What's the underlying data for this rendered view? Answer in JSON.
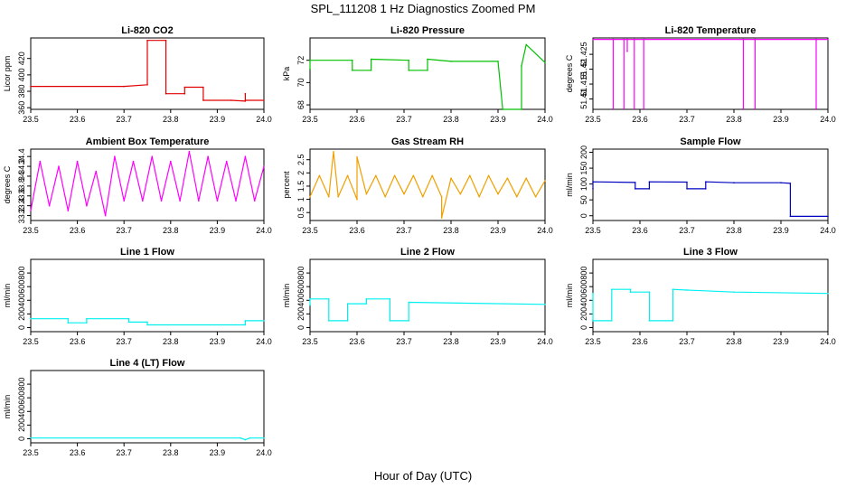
{
  "figure": {
    "title": "SPL_111208  1 Hz Diagnostics Zoomed PM",
    "xlabel": "Hour of Day (UTC)"
  },
  "chart_data": [
    {
      "type": "line",
      "title": "Li-820 CO2",
      "ylabel": "Licor ppm",
      "color": "#e00000",
      "xlim": [
        23.5,
        24.0
      ],
      "ylim": [
        358,
        445
      ],
      "xticks": [
        "23.5",
        "23.6",
        "23.7",
        "23.8",
        "23.9",
        "24.0"
      ],
      "yticks": [
        360,
        380,
        400,
        420
      ],
      "series": [
        {
          "x": [
            23.5,
            23.7,
            23.75,
            23.75,
            23.79,
            23.79,
            23.83,
            23.83,
            23.87,
            23.87,
            23.93,
            23.96,
            23.96,
            23.96,
            24.0
          ],
          "y": [
            386,
            386,
            388,
            442,
            442,
            377,
            377,
            385,
            385,
            369,
            369,
            368,
            377,
            369,
            369
          ]
        }
      ]
    },
    {
      "type": "line",
      "title": "Li-820 Pressure",
      "ylabel": "kPa",
      "color": "#00c000",
      "xlim": [
        23.5,
        24.0
      ],
      "ylim": [
        67.6,
        74.0
      ],
      "xticks": [
        "23.5",
        "23.6",
        "23.7",
        "23.8",
        "23.9",
        "24.0"
      ],
      "yticks": [
        68,
        70,
        72
      ],
      "series": [
        {
          "x": [
            23.5,
            23.5,
            23.59,
            23.59,
            23.63,
            23.63,
            23.71,
            23.71,
            23.75,
            23.75,
            23.8,
            23.9,
            23.91,
            23.91,
            23.95,
            23.95,
            23.96,
            24.0
          ],
          "y": [
            71.2,
            72.0,
            72.0,
            71.1,
            71.1,
            72.1,
            72.0,
            71.1,
            71.1,
            72.1,
            71.9,
            71.9,
            67.6,
            67.6,
            67.6,
            71.5,
            73.4,
            71.8
          ]
        }
      ]
    },
    {
      "type": "line",
      "title": "Li-820 Temperature",
      "ylabel": "degrees C",
      "color": "#ff00ff",
      "xlim": [
        23.5,
        24.0
      ],
      "ylim": [
        51.4065,
        51.4305
      ],
      "xticks": [
        "23.5",
        "23.6",
        "23.7",
        "23.8",
        "23.9",
        "24.0"
      ],
      "yticks": [
        51.41,
        51.415,
        51.42,
        51.425
      ],
      "series": [
        {
          "x": [
            23.5,
            23.543,
            23.543,
            23.543,
            23.566,
            23.566,
            23.566,
            23.573,
            23.573,
            23.573,
            23.588,
            23.588,
            23.588,
            23.608,
            23.608,
            23.608,
            23.82,
            23.82,
            23.82,
            23.845,
            23.845,
            23.845,
            23.975,
            23.975,
            23.975,
            24.0
          ],
          "y": [
            51.43,
            51.43,
            51.4067,
            51.43,
            51.43,
            51.4067,
            51.43,
            51.43,
            51.426,
            51.43,
            51.43,
            51.4067,
            51.43,
            51.43,
            51.4067,
            51.43,
            51.43,
            51.4067,
            51.43,
            51.43,
            51.4067,
            51.43,
            51.43,
            51.4067,
            51.43,
            51.43
          ]
        }
      ]
    },
    {
      "type": "line",
      "title": "Ambient Box Temperature",
      "ylabel": "degrees C",
      "color": "#ff00ff",
      "xlim": [
        23.5,
        24.0
      ],
      "ylim": [
        33.1,
        34.55
      ],
      "xticks": [
        "23.5",
        "23.6",
        "23.7",
        "23.8",
        "23.9",
        "24.0"
      ],
      "yticks": [
        33.2,
        33.4,
        33.6,
        33.8,
        34.0,
        34.2,
        34.4
      ],
      "series": [
        {
          "x": [
            23.5,
            23.52,
            23.54,
            23.56,
            23.58,
            23.6,
            23.62,
            23.64,
            23.66,
            23.68,
            23.7,
            23.72,
            23.74,
            23.76,
            23.78,
            23.8,
            23.82,
            23.84,
            23.86,
            23.88,
            23.9,
            23.92,
            23.94,
            23.96,
            23.98,
            24.0
          ],
          "y": [
            33.3,
            34.3,
            33.4,
            34.2,
            33.3,
            34.3,
            33.4,
            34.1,
            33.2,
            34.4,
            33.5,
            34.3,
            33.5,
            34.4,
            33.5,
            34.3,
            33.5,
            34.5,
            33.5,
            34.4,
            33.5,
            34.3,
            33.5,
            34.4,
            33.5,
            34.2
          ]
        }
      ]
    },
    {
      "type": "line",
      "title": "Gas Stream RH",
      "ylabel": "percent",
      "color": "#f0a000",
      "xlim": [
        23.5,
        24.0
      ],
      "ylim": [
        0.2,
        2.9
      ],
      "xticks": [
        "23.5",
        "23.6",
        "23.7",
        "23.8",
        "23.9",
        "24.0"
      ],
      "yticks": [
        0.5,
        1.0,
        1.5,
        2.0,
        2.5
      ],
      "series": [
        {
          "x": [
            23.5,
            23.52,
            23.54,
            23.55,
            23.56,
            23.58,
            23.6,
            23.6,
            23.62,
            23.64,
            23.66,
            23.68,
            23.7,
            23.72,
            23.74,
            23.76,
            23.78,
            23.78,
            23.8,
            23.82,
            23.84,
            23.86,
            23.88,
            23.9,
            23.92,
            23.94,
            23.96,
            23.98,
            24.0
          ],
          "y": [
            1.1,
            1.9,
            1.1,
            2.8,
            1.1,
            1.9,
            1.0,
            2.6,
            1.2,
            1.9,
            1.1,
            1.9,
            1.2,
            1.9,
            1.1,
            1.9,
            1.1,
            0.3,
            1.8,
            1.2,
            1.9,
            1.1,
            1.9,
            1.2,
            1.8,
            1.1,
            1.8,
            1.1,
            1.7
          ]
        }
      ]
    },
    {
      "type": "line",
      "title": "Sample Flow",
      "ylabel": "ml/min",
      "color": "#0000c0",
      "xlim": [
        23.5,
        24.0
      ],
      "ylim": [
        -15,
        210
      ],
      "xticks": [
        "23.5",
        "23.6",
        "23.7",
        "23.8",
        "23.9",
        "24.0"
      ],
      "yticks": [
        0,
        50,
        100,
        150,
        200
      ],
      "series": [
        {
          "x": [
            23.5,
            23.5,
            23.59,
            23.59,
            23.62,
            23.62,
            23.7,
            23.7,
            23.74,
            23.74,
            23.8,
            23.9,
            23.92,
            23.92,
            24.0
          ],
          "y": [
            85,
            107,
            105,
            85,
            85,
            107,
            106,
            85,
            85,
            107,
            104,
            104,
            102,
            -2,
            -2
          ]
        }
      ]
    },
    {
      "type": "line",
      "title": "Line 1 Flow",
      "ylabel": "ml/min",
      "color": "#00f0f0",
      "xlim": [
        23.5,
        24.0
      ],
      "ylim": [
        -60,
        1000
      ],
      "xticks": [
        "23.5",
        "23.6",
        "23.7",
        "23.8",
        "23.9",
        "24.0"
      ],
      "yticks": [
        0,
        200,
        400,
        600,
        800
      ],
      "series": [
        {
          "x": [
            23.5,
            23.58,
            23.58,
            23.62,
            23.62,
            23.71,
            23.71,
            23.75,
            23.75,
            23.96,
            23.96,
            24.0
          ],
          "y": [
            130,
            130,
            70,
            70,
            130,
            130,
            80,
            80,
            40,
            40,
            100,
            100
          ]
        }
      ]
    },
    {
      "type": "line",
      "title": "Line 2 Flow",
      "ylabel": "ml/min",
      "color": "#00f0f0",
      "xlim": [
        23.5,
        24.0
      ],
      "ylim": [
        -60,
        1000
      ],
      "xticks": [
        "23.5",
        "23.6",
        "23.7",
        "23.8",
        "23.9",
        "24.0"
      ],
      "yticks": [
        0,
        200,
        400,
        600,
        800
      ],
      "series": [
        {
          "x": [
            23.5,
            23.5,
            23.54,
            23.54,
            23.58,
            23.58,
            23.62,
            23.62,
            23.67,
            23.67,
            23.71,
            23.71,
            24.0
          ],
          "y": [
            330,
            420,
            420,
            100,
            100,
            350,
            350,
            420,
            420,
            100,
            100,
            370,
            340
          ]
        }
      ]
    },
    {
      "type": "line",
      "title": "Line 3 Flow",
      "ylabel": "ml/min",
      "color": "#00f0f0",
      "xlim": [
        23.5,
        24.0
      ],
      "ylim": [
        -60,
        1000
      ],
      "xticks": [
        "23.5",
        "23.6",
        "23.7",
        "23.8",
        "23.9",
        "24.0"
      ],
      "yticks": [
        0,
        200,
        400,
        600,
        800
      ],
      "series": [
        {
          "x": [
            23.5,
            23.5,
            23.5,
            23.54,
            23.54,
            23.58,
            23.58,
            23.62,
            23.62,
            23.67,
            23.67,
            23.7,
            23.8,
            24.0
          ],
          "y": [
            100,
            500,
            100,
            100,
            560,
            560,
            520,
            520,
            100,
            100,
            560,
            550,
            520,
            500
          ]
        }
      ]
    },
    {
      "type": "line",
      "title": "Line 4 (LT) Flow",
      "ylabel": "ml/min",
      "color": "#00f0f0",
      "xlim": [
        23.5,
        24.0
      ],
      "ylim": [
        -60,
        1000
      ],
      "xticks": [
        "23.5",
        "23.6",
        "23.7",
        "23.8",
        "23.9",
        "24.0"
      ],
      "yticks": [
        0,
        200,
        400,
        600,
        800
      ],
      "series": [
        {
          "x": [
            23.5,
            23.95,
            23.96,
            23.97,
            24.0
          ],
          "y": [
            10,
            10,
            -15,
            10,
            10
          ]
        }
      ]
    }
  ]
}
